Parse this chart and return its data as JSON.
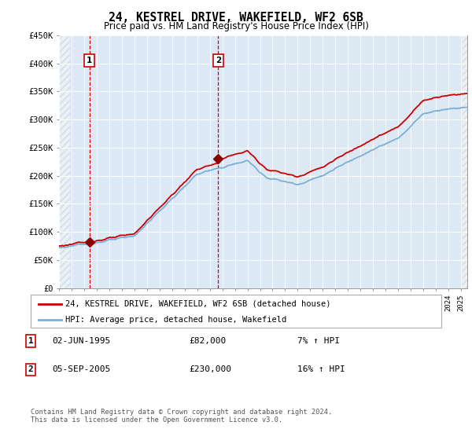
{
  "title": "24, KESTREL DRIVE, WAKEFIELD, WF2 6SB",
  "subtitle": "Price paid vs. HM Land Registry's House Price Index (HPI)",
  "ylim": [
    0,
    450000
  ],
  "yticks": [
    0,
    50000,
    100000,
    150000,
    200000,
    250000,
    300000,
    350000,
    400000,
    450000
  ],
  "ytick_labels": [
    "£0",
    "£50K",
    "£100K",
    "£150K",
    "£200K",
    "£250K",
    "£300K",
    "£350K",
    "£400K",
    "£450K"
  ],
  "xlim_start": 1993.0,
  "xlim_end": 2025.5,
  "transaction1": {
    "date": 1995.42,
    "price": 82000,
    "label": "1",
    "date_str": "02-JUN-1995",
    "price_str": "£82,000",
    "pct_str": "7% ↑ HPI"
  },
  "transaction2": {
    "date": 2005.67,
    "price": 230000,
    "label": "2",
    "date_str": "05-SEP-2005",
    "price_str": "£230,000",
    "pct_str": "16% ↑ HPI"
  },
  "hpi_line_color": "#7bafd4",
  "price_line_color": "#cc0000",
  "marker_color": "#8b0000",
  "box_edge_color": "#cc0000",
  "chart_bg_color": "#dce9f5",
  "hatch_color": "#c0c0c0",
  "legend_label1": "24, KESTREL DRIVE, WAKEFIELD, WF2 6SB (detached house)",
  "legend_label2": "HPI: Average price, detached house, Wakefield",
  "footer": "Contains HM Land Registry data © Crown copyright and database right 2024.\nThis data is licensed under the Open Government Licence v3.0.",
  "table_rows": [
    {
      "num": "1",
      "date": "02-JUN-1995",
      "price": "£82,000",
      "pct": "7% ↑ HPI"
    },
    {
      "num": "2",
      "date": "05-SEP-2005",
      "price": "£230,000",
      "pct": "16% ↑ HPI"
    }
  ]
}
